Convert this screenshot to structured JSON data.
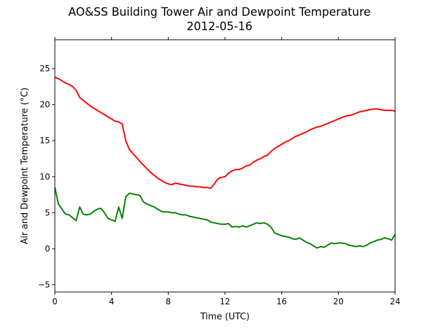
{
  "chart_data": {
    "type": "line",
    "title": "AO&SS Building Tower Air and Dewpoint Temperature",
    "subtitle": "2012-05-16",
    "xlabel": "Time (UTC)",
    "ylabel": "Air and Dewpoint Temperature (°C)",
    "xlim": [
      0,
      24
    ],
    "ylim": [
      -6,
      29
    ],
    "xticks": [
      0,
      4,
      8,
      12,
      16,
      20,
      24
    ],
    "yticks": [
      -5,
      0,
      5,
      10,
      15,
      20,
      25
    ],
    "grid": false,
    "legend": "none",
    "series": [
      {
        "color": "#ff0000",
        "x": [
          0.0,
          0.25,
          0.5,
          0.75,
          1.0,
          1.25,
          1.5,
          1.75,
          2.0,
          2.25,
          2.5,
          2.75,
          3.0,
          3.25,
          3.5,
          3.75,
          4.0,
          4.25,
          4.5,
          4.75,
          5.0,
          5.25,
          5.5,
          5.75,
          6.0,
          6.25,
          6.5,
          6.75,
          7.0,
          7.25,
          7.5,
          7.75,
          8.0,
          8.25,
          8.5,
          8.75,
          9.0,
          9.25,
          9.5,
          9.75,
          10.0,
          10.25,
          10.5,
          10.75,
          11.0,
          11.25,
          11.5,
          11.75,
          12.0,
          12.25,
          12.5,
          12.75,
          13.0,
          13.25,
          13.5,
          13.75,
          14.0,
          14.25,
          14.5,
          14.75,
          15.0,
          15.25,
          15.5,
          15.75,
          16.0,
          16.25,
          16.5,
          16.75,
          17.0,
          17.25,
          17.5,
          17.75,
          18.0,
          18.25,
          18.5,
          18.75,
          19.0,
          19.25,
          19.5,
          19.75,
          20.0,
          20.25,
          20.5,
          20.75,
          21.0,
          21.25,
          21.5,
          21.75,
          22.0,
          22.25,
          22.5,
          22.75,
          23.0,
          23.25,
          23.5,
          23.75,
          24.0
        ],
        "y": [
          23.8,
          23.6,
          23.3,
          23.0,
          22.8,
          22.5,
          22.0,
          21.0,
          20.6,
          20.2,
          19.8,
          19.5,
          19.2,
          18.9,
          18.6,
          18.3,
          18.0,
          17.7,
          17.6,
          17.3,
          15.0,
          13.8,
          13.2,
          12.7,
          12.1,
          11.6,
          11.1,
          10.6,
          10.2,
          9.8,
          9.5,
          9.2,
          9.0,
          8.9,
          9.1,
          9.0,
          8.9,
          8.8,
          8.7,
          8.7,
          8.6,
          8.6,
          8.5,
          8.5,
          8.4,
          9.0,
          9.7,
          9.9,
          10.0,
          10.5,
          10.8,
          11.0,
          11.0,
          11.2,
          11.5,
          11.6,
          12.0,
          12.3,
          12.5,
          12.8,
          13.0,
          13.5,
          13.9,
          14.2,
          14.5,
          14.8,
          15.0,
          15.3,
          15.6,
          15.8,
          16.0,
          16.2,
          16.5,
          16.7,
          16.9,
          17.0,
          17.2,
          17.4,
          17.6,
          17.8,
          18.0,
          18.2,
          18.4,
          18.5,
          18.6,
          18.8,
          19.0,
          19.1,
          19.2,
          19.3,
          19.4,
          19.4,
          19.3,
          19.2,
          19.2,
          19.2,
          19.1
        ]
      },
      {
        "color": "#008000",
        "x": [
          0.0,
          0.25,
          0.5,
          0.75,
          1.0,
          1.25,
          1.5,
          1.75,
          2.0,
          2.25,
          2.5,
          2.75,
          3.0,
          3.25,
          3.5,
          3.75,
          4.0,
          4.25,
          4.5,
          4.75,
          5.0,
          5.25,
          5.5,
          5.75,
          6.0,
          6.25,
          6.5,
          6.75,
          7.0,
          7.25,
          7.5,
          7.75,
          8.0,
          8.25,
          8.5,
          8.75,
          9.0,
          9.25,
          9.5,
          9.75,
          10.0,
          10.25,
          10.5,
          10.75,
          11.0,
          11.25,
          11.5,
          11.75,
          12.0,
          12.25,
          12.5,
          12.75,
          13.0,
          13.25,
          13.5,
          13.75,
          14.0,
          14.25,
          14.5,
          14.75,
          15.0,
          15.25,
          15.5,
          15.75,
          16.0,
          16.25,
          16.5,
          16.75,
          17.0,
          17.25,
          17.5,
          17.75,
          18.0,
          18.25,
          18.5,
          18.75,
          19.0,
          19.25,
          19.5,
          19.75,
          20.0,
          20.25,
          20.5,
          20.75,
          21.0,
          21.25,
          21.5,
          21.75,
          22.0,
          22.25,
          22.5,
          22.75,
          23.0,
          23.25,
          23.5,
          23.75,
          24.0
        ],
        "y": [
          8.5,
          6.2,
          5.5,
          4.8,
          4.7,
          4.3,
          3.9,
          5.8,
          4.8,
          4.7,
          4.8,
          5.2,
          5.5,
          5.6,
          5.0,
          4.2,
          4.0,
          3.8,
          5.8,
          4.2,
          7.2,
          7.7,
          7.6,
          7.5,
          7.4,
          6.5,
          6.2,
          6.0,
          5.8,
          5.5,
          5.2,
          5.1,
          5.1,
          5.0,
          5.0,
          4.8,
          4.7,
          4.7,
          4.5,
          4.4,
          4.3,
          4.2,
          4.1,
          4.0,
          3.7,
          3.6,
          3.5,
          3.4,
          3.4,
          3.5,
          3.0,
          3.1,
          3.0,
          3.2,
          3.0,
          3.2,
          3.4,
          3.6,
          3.5,
          3.6,
          3.4,
          3.0,
          2.2,
          2.0,
          1.8,
          1.7,
          1.6,
          1.4,
          1.3,
          1.5,
          1.2,
          0.9,
          0.7,
          0.4,
          0.1,
          0.3,
          0.2,
          0.5,
          0.8,
          0.7,
          0.8,
          0.8,
          0.7,
          0.5,
          0.4,
          0.3,
          0.4,
          0.3,
          0.5,
          0.8,
          1.0,
          1.2,
          1.3,
          1.5,
          1.4,
          1.2,
          2.0
        ]
      }
    ]
  }
}
